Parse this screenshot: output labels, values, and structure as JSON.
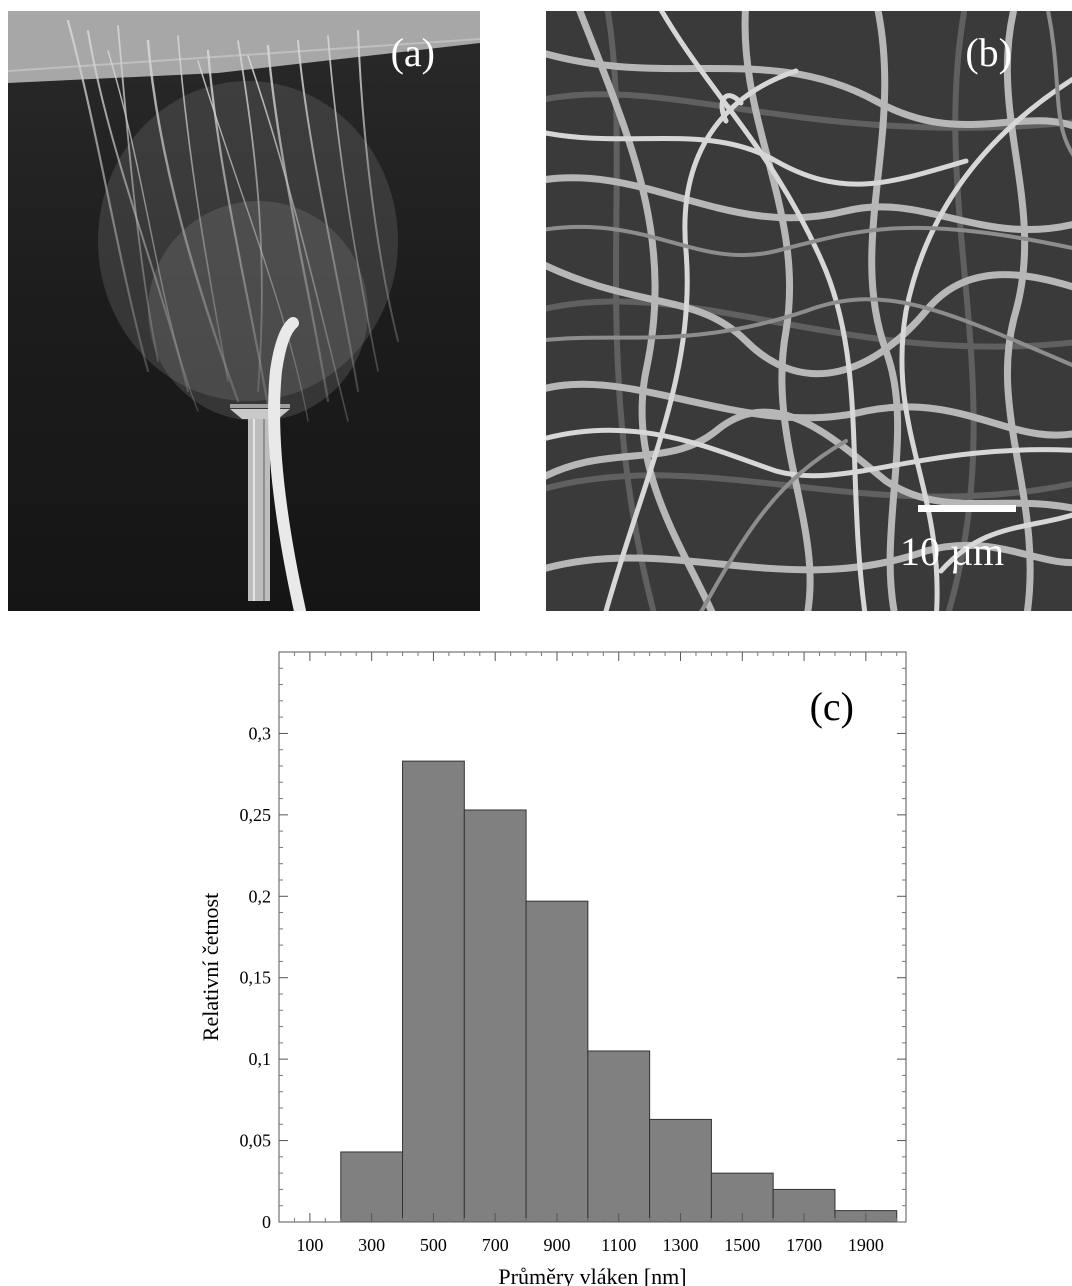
{
  "panels": {
    "a": {
      "letter": "(a)"
    },
    "b": {
      "letter": "(b)",
      "scale_label": "10 µm"
    }
  },
  "chart_data": {
    "type": "bar",
    "panel_letter": "(c)",
    "title": "",
    "xlabel": "Průměry vláken [nm]",
    "ylabel": "Relativní četnost",
    "bin_width": 200,
    "bin_centers": [
      300,
      500,
      700,
      900,
      1100,
      1300,
      1500,
      1700,
      1900
    ],
    "values": [
      0.043,
      0.283,
      0.253,
      0.197,
      0.105,
      0.063,
      0.03,
      0.02,
      0.007
    ],
    "x_ticks": [
      100,
      300,
      500,
      700,
      900,
      1100,
      1300,
      1500,
      1700,
      1900
    ],
    "y_ticks": [
      0,
      0.05,
      0.1,
      0.15,
      0.2,
      0.25,
      0.3
    ],
    "y_tick_labels": [
      "0",
      "0,05",
      "0,1",
      "0,15",
      "0,2",
      "0,25",
      "0,3"
    ],
    "xlim": [
      0,
      2030
    ],
    "ylim": [
      0,
      0.35
    ],
    "bar_color": "#808080",
    "grid": false,
    "legend": "none"
  }
}
